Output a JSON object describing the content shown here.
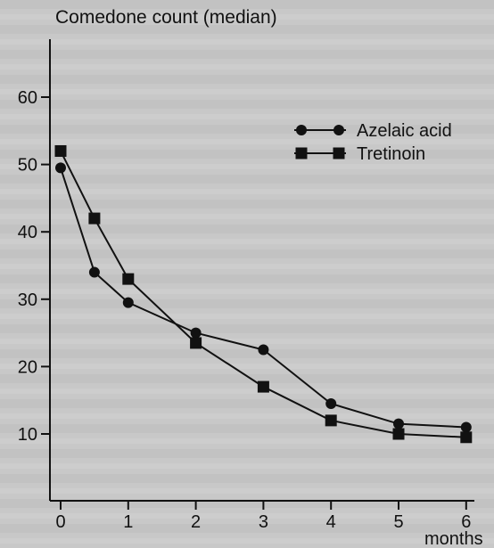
{
  "chart_data": {
    "type": "line",
    "ylabel": "Comedone count (median)",
    "xlabel": "months",
    "xlim": [
      0,
      6
    ],
    "ylim": [
      0,
      65
    ],
    "x_ticks": [
      "0",
      "1",
      "2",
      "3",
      "4",
      "5",
      "6"
    ],
    "y_ticks": [
      "10",
      "20",
      "30",
      "40",
      "50",
      "60"
    ],
    "grid": false,
    "legend_position": "top-right",
    "series": [
      {
        "name": "Azelaic acid",
        "marker": "circle",
        "x": [
          0,
          0.5,
          1,
          2,
          3,
          4,
          5,
          6
        ],
        "y": [
          49.5,
          34,
          29.5,
          25,
          22.5,
          14.5,
          11.5,
          11
        ]
      },
      {
        "name": "Tretinoin",
        "marker": "square",
        "x": [
          0,
          0.5,
          1,
          2,
          3,
          4,
          5,
          6
        ],
        "y": [
          52,
          42,
          33,
          23.5,
          17,
          12,
          10,
          9.5
        ]
      }
    ]
  }
}
